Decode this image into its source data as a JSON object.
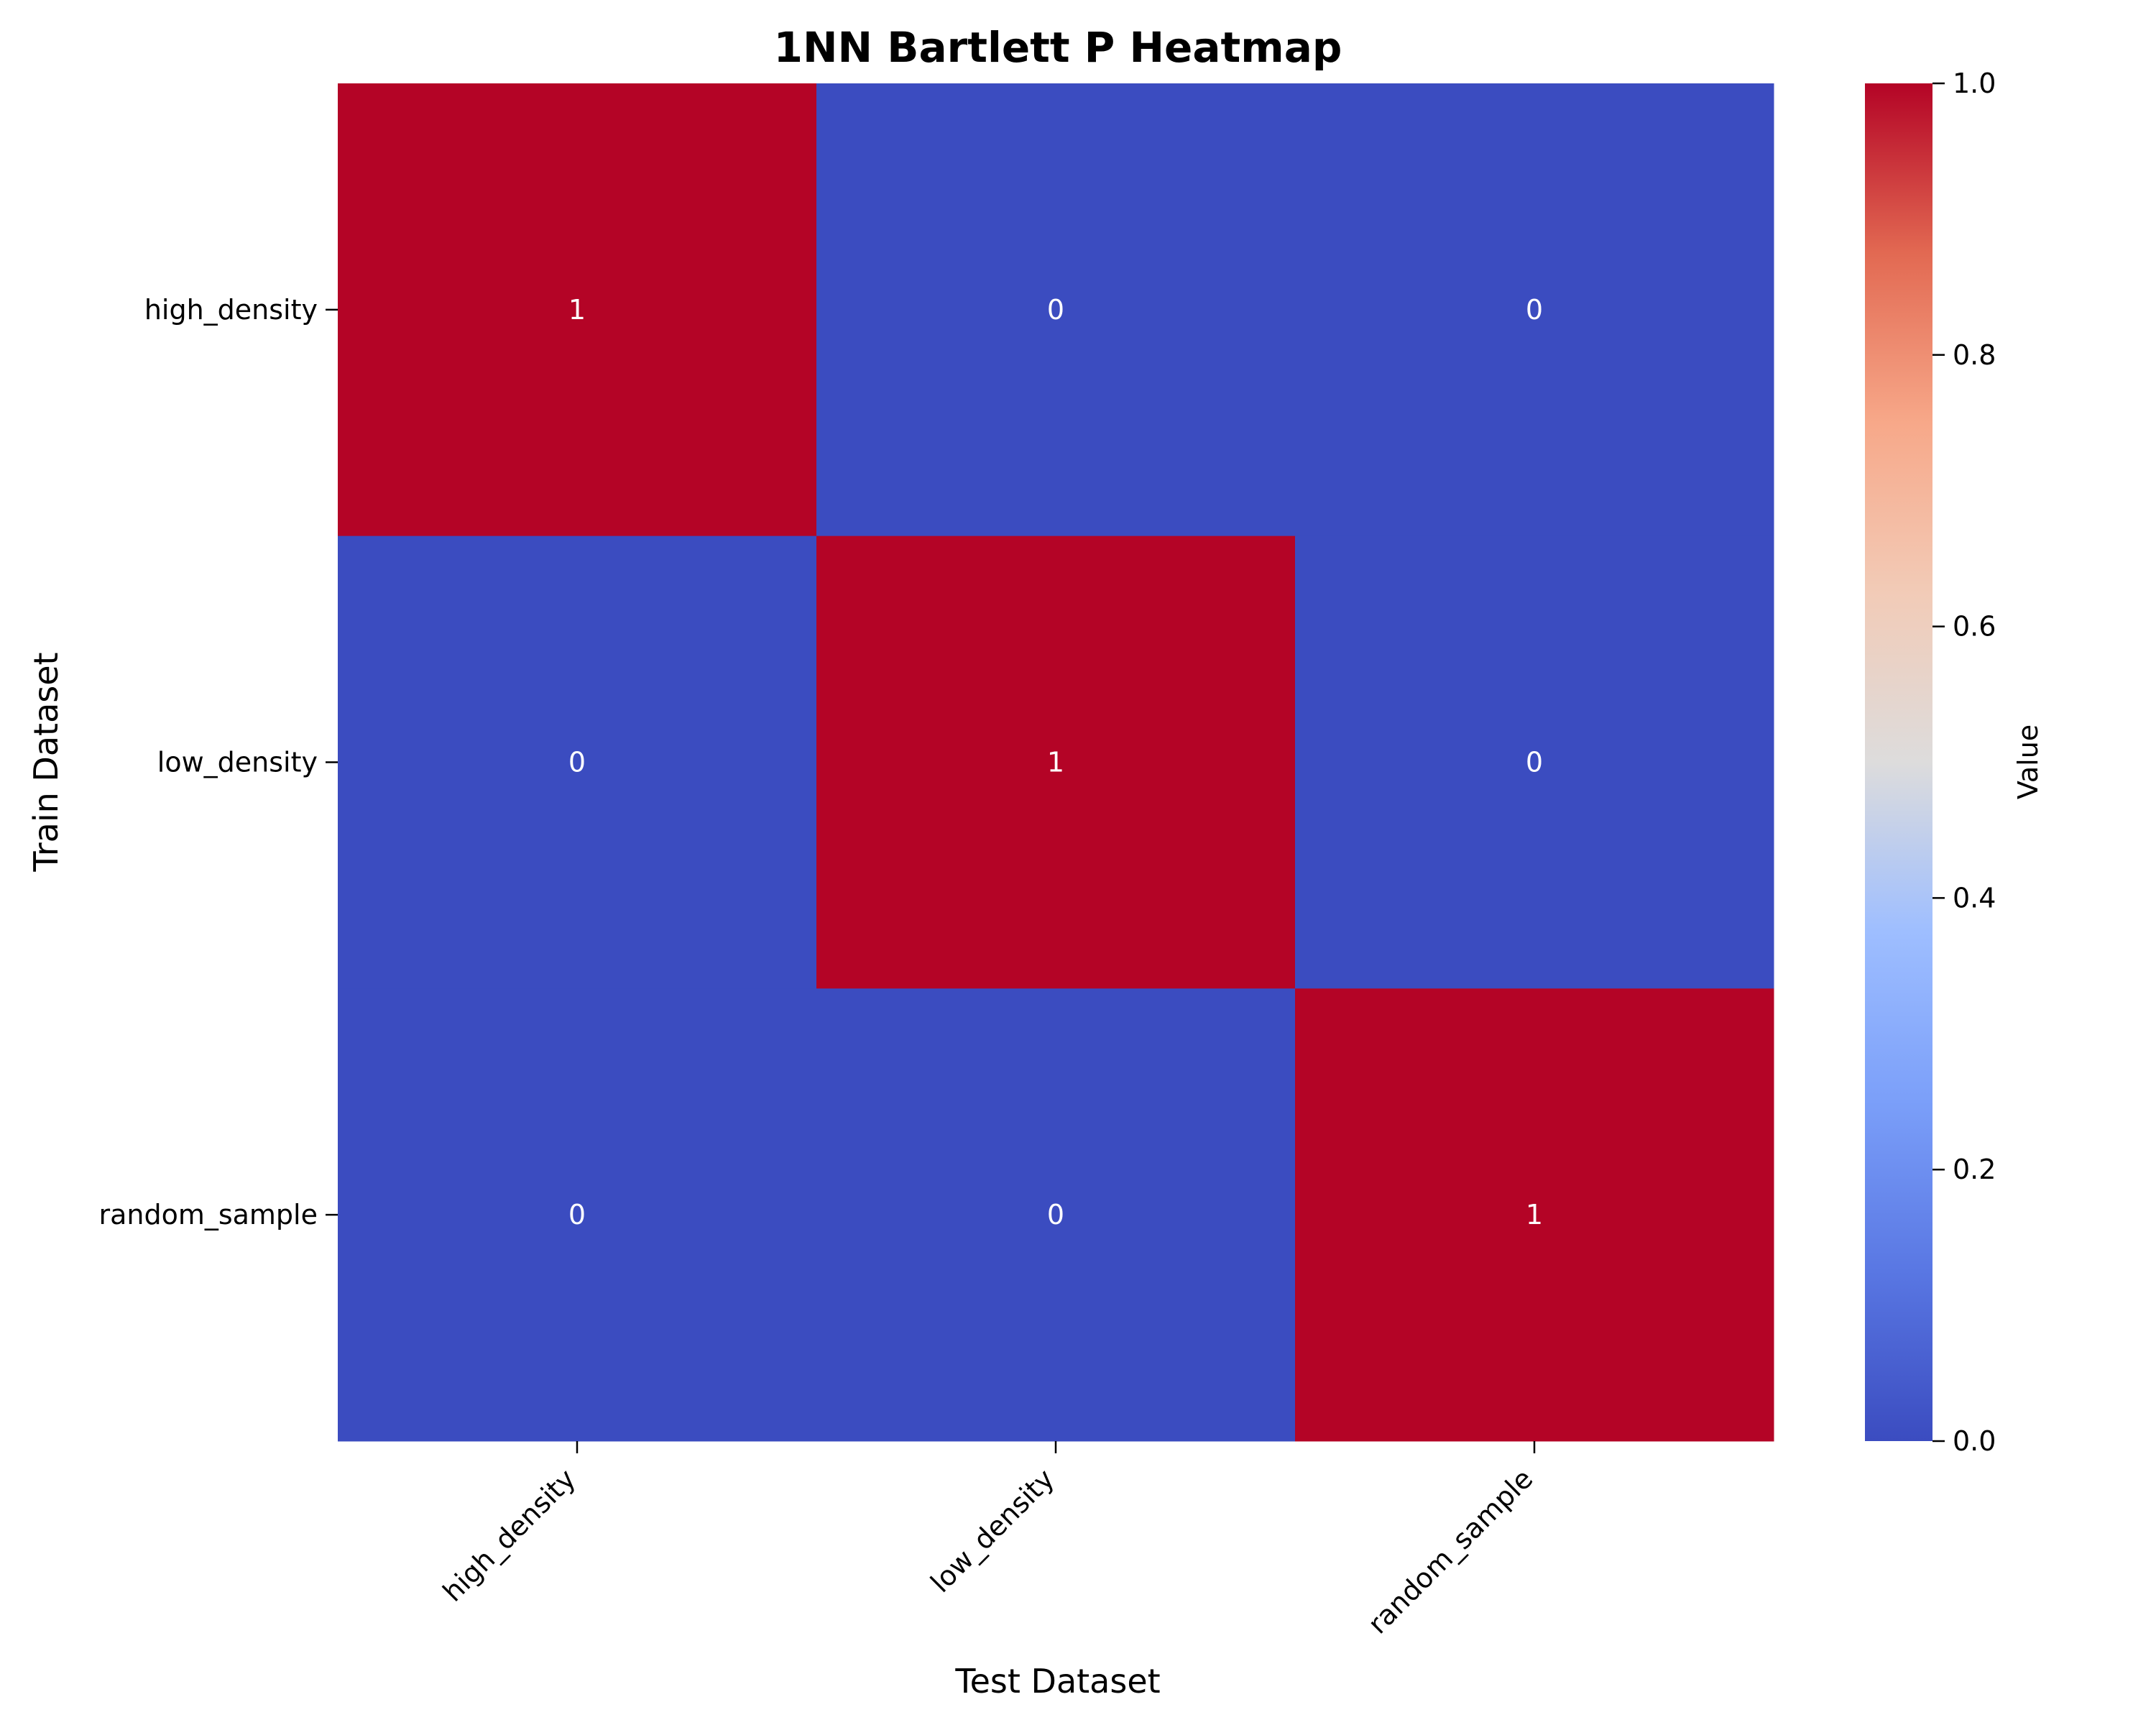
{
  "chart_data": {
    "type": "heatmap",
    "title": "1NN Bartlett P Heatmap",
    "xlabel": "Test Dataset",
    "ylabel": "Train Dataset",
    "x_categories": [
      "high_density",
      "low_density",
      "random_sample"
    ],
    "y_categories": [
      "high_density",
      "low_density",
      "random_sample"
    ],
    "values": [
      [
        1,
        0,
        0
      ],
      [
        0,
        1,
        0
      ],
      [
        0,
        0,
        1
      ]
    ],
    "cell_labels": [
      [
        "1",
        "0",
        "0"
      ],
      [
        "0",
        "1",
        "0"
      ],
      [
        "0",
        "0",
        "1"
      ]
    ],
    "colormap": "coolwarm",
    "colors": {
      "low": "#3b4cc0",
      "mid": "#dddddd",
      "high": "#b40426"
    },
    "colorbar": {
      "label": "Value",
      "range": [
        0.0,
        1.0
      ],
      "ticks": [
        0.0,
        0.2,
        0.4,
        0.6,
        0.8,
        1.0
      ],
      "tick_labels": [
        "0.0",
        "0.2",
        "0.4",
        "0.6",
        "0.8",
        "1.0"
      ]
    },
    "grid": false
  }
}
